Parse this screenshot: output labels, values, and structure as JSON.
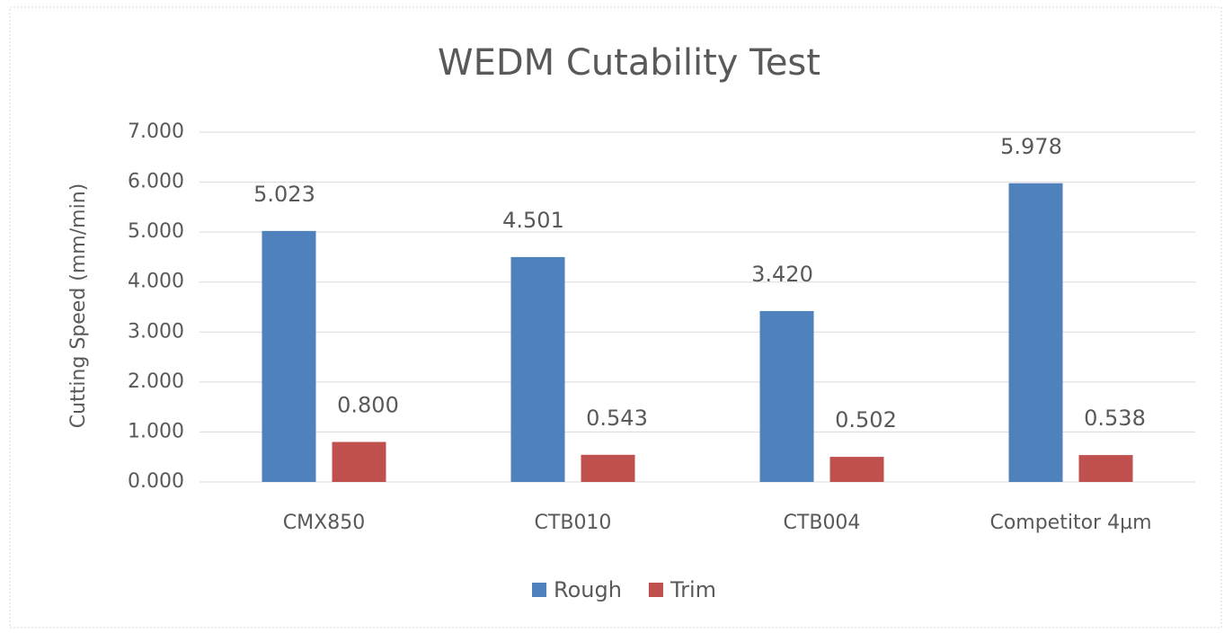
{
  "chart_data": {
    "type": "bar",
    "title": "WEDM Cutability Test",
    "y_label": "Cutting Speed  (mm/min)",
    "categories": [
      "CMX850",
      "CTB010",
      "CTB004",
      "Competitor 4µm"
    ],
    "series": [
      {
        "name": "Rough",
        "color": "#4f81bd",
        "values": [
          5.023,
          4.501,
          3.42,
          5.978
        ],
        "value_labels": [
          "5.023",
          "4.501",
          "3.420",
          "5.978"
        ]
      },
      {
        "name": "Trim",
        "color": "#c0504d",
        "values": [
          0.8,
          0.543,
          0.502,
          0.538
        ],
        "value_labels": [
          "0.800",
          "0.543",
          "0.502",
          "0.538"
        ]
      }
    ],
    "ylim": [
      0,
      7
    ],
    "yticks": [
      {
        "value": 0,
        "label": "0.000"
      },
      {
        "value": 1,
        "label": "1.000"
      },
      {
        "value": 2,
        "label": "2.000"
      },
      {
        "value": 3,
        "label": "3.000"
      },
      {
        "value": 4,
        "label": "4.000"
      },
      {
        "value": 5,
        "label": "5.000"
      },
      {
        "value": 6,
        "label": "6.000"
      },
      {
        "value": 7,
        "label": "7.000"
      }
    ],
    "grid": true,
    "legend": "bottom"
  }
}
